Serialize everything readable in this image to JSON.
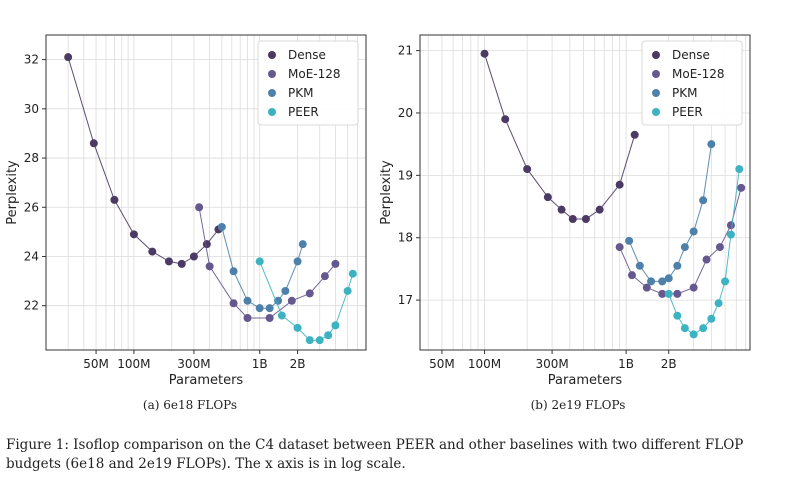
{
  "figure": {
    "sub_a": "(a) 6e18 FLOPs",
    "sub_b": "(b) 2e19 FLOPs",
    "caption": "Figure 1: Isoflop comparison on the C4 dataset between PEER and other baselines with two different FLOP budgets (6e18 and 2e19 FLOPs). The x axis is in log scale."
  },
  "colors": {
    "Dense": "#4b3a63",
    "MoE-128": "#65588f",
    "PKM": "#4e81a9",
    "PEER": "#3db2c1"
  },
  "chart_data": [
    {
      "type": "line",
      "xlabel": "Parameters",
      "ylabel": "Perplexity",
      "x_scale": "log",
      "xlim": [
        20,
        7000
      ],
      "ylim": [
        20.2,
        33.0
      ],
      "yticks": [
        22,
        24,
        26,
        28,
        30,
        32
      ],
      "xticks": [
        {
          "value": 50,
          "label": "50M"
        },
        {
          "value": 100,
          "label": "100M"
        },
        {
          "value": 300,
          "label": "300M"
        },
        {
          "value": 1000,
          "label": "1B"
        },
        {
          "value": 2000,
          "label": "2B"
        }
      ],
      "grid": true,
      "legend": "top-right",
      "series": [
        {
          "name": "Dense",
          "x": [
            30,
            48,
            70,
            100,
            140,
            190,
            240,
            300,
            380,
            470
          ],
          "y": [
            32.1,
            28.6,
            26.3,
            24.9,
            24.2,
            23.8,
            23.7,
            24.0,
            24.5,
            25.1
          ]
        },
        {
          "name": "MoE-128",
          "x": [
            330,
            400,
            620,
            800,
            1200,
            1800,
            2500,
            3300,
            4000
          ],
          "y": [
            26.0,
            23.6,
            22.1,
            21.5,
            21.5,
            22.2,
            22.5,
            23.2,
            23.7
          ]
        },
        {
          "name": "PKM",
          "x": [
            500,
            620,
            800,
            1000,
            1200,
            1400,
            1600,
            2000,
            2200
          ],
          "y": [
            25.2,
            23.4,
            22.2,
            21.9,
            21.9,
            22.2,
            22.6,
            23.8,
            24.5
          ]
        },
        {
          "name": "PEER",
          "x": [
            1000,
            1500,
            2000,
            2500,
            3000,
            3500,
            4000,
            5000,
            5500
          ],
          "y": [
            23.8,
            21.6,
            21.1,
            20.6,
            20.6,
            20.8,
            21.2,
            22.6,
            23.3
          ]
        }
      ]
    },
    {
      "type": "line",
      "xlabel": "Parameters",
      "ylabel": "Perplexity",
      "x_scale": "log",
      "xlim": [
        35,
        7500
      ],
      "ylim": [
        16.2,
        21.25
      ],
      "yticks": [
        17,
        18,
        19,
        20,
        21
      ],
      "xticks": [
        {
          "value": 50,
          "label": "50M"
        },
        {
          "value": 100,
          "label": "100M"
        },
        {
          "value": 300,
          "label": "300M"
        },
        {
          "value": 1000,
          "label": "1B"
        },
        {
          "value": 2000,
          "label": "2B"
        }
      ],
      "grid": true,
      "legend": "top-right",
      "series": [
        {
          "name": "Dense",
          "x": [
            100,
            140,
            200,
            280,
            350,
            420,
            520,
            650,
            900,
            1150
          ],
          "y": [
            20.95,
            19.9,
            19.1,
            18.65,
            18.45,
            18.3,
            18.3,
            18.45,
            18.85,
            19.65
          ]
        },
        {
          "name": "MoE-128",
          "x": [
            900,
            1100,
            1400,
            1800,
            2300,
            3000,
            3700,
            4600,
            5500,
            6500
          ],
          "y": [
            17.85,
            17.4,
            17.2,
            17.1,
            17.1,
            17.2,
            17.65,
            17.85,
            18.2,
            18.8
          ]
        },
        {
          "name": "PKM",
          "x": [
            1050,
            1250,
            1500,
            1800,
            2000,
            2300,
            2600,
            3000,
            3500,
            4000
          ],
          "y": [
            17.95,
            17.55,
            17.3,
            17.3,
            17.35,
            17.55,
            17.85,
            18.1,
            18.6,
            19.5
          ]
        },
        {
          "name": "PEER",
          "x": [
            2000,
            2300,
            2600,
            3000,
            3500,
            4000,
            4500,
            5000,
            5500,
            6300
          ],
          "y": [
            17.1,
            16.75,
            16.55,
            16.45,
            16.55,
            16.7,
            16.95,
            17.3,
            18.05,
            19.1
          ]
        }
      ]
    }
  ]
}
